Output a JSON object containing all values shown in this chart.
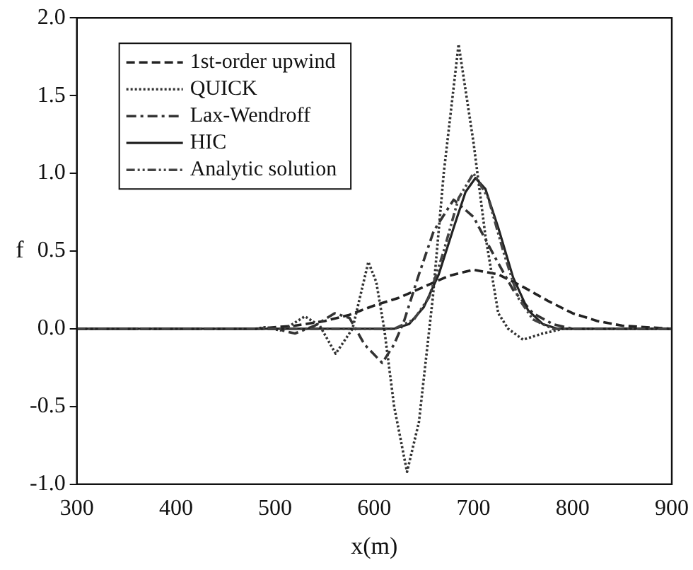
{
  "chart_data": {
    "type": "line",
    "xlabel": "x(m)",
    "ylabel": "f",
    "xlim": [
      300,
      900
    ],
    "xticks": [
      300,
      400,
      500,
      600,
      700,
      800,
      900
    ],
    "ylim": [
      -1.0,
      2.0
    ],
    "yticks": [
      {
        "value": -1,
        "label": "-1.0"
      },
      {
        "value": -0.5,
        "label": "-0.5"
      },
      {
        "value": 0,
        "label": "0.0"
      },
      {
        "value": 0.5,
        "label": "0.5"
      },
      {
        "value": 1,
        "label": "1.0"
      },
      {
        "value": 1.5,
        "label": "1.5"
      },
      {
        "value": 2,
        "label": "2.0"
      }
    ],
    "grid": false,
    "legend": "top left",
    "marker": "none",
    "series": [
      {
        "name": "1st-order upwind",
        "color": "#222222",
        "line_style": "dashed",
        "x": [
          300,
          480,
          520,
          550,
          575,
          600,
          625,
          650,
          675,
          700,
          725,
          750,
          775,
          800,
          825,
          850,
          875,
          900
        ],
        "values": [
          0,
          0,
          0.02,
          0.05,
          0.09,
          0.15,
          0.2,
          0.27,
          0.34,
          0.38,
          0.35,
          0.27,
          0.18,
          0.1,
          0.05,
          0.02,
          0.01,
          0
        ]
      },
      {
        "name": "QUICK",
        "color": "#333333",
        "line_style": "dotted",
        "x": [
          300,
          480,
          490,
          505,
          515,
          530,
          545,
          561,
          578,
          594,
          602,
          610,
          620,
          633,
          645,
          659,
          670,
          685,
          700,
          712,
          725,
          735,
          750,
          770,
          790,
          900
        ],
        "values": [
          0,
          0,
          0.01,
          -0.01,
          0.02,
          0.08,
          0.02,
          -0.16,
          0,
          0.43,
          0.3,
          0,
          -0.5,
          -0.92,
          -0.6,
          0.2,
          1.0,
          1.83,
          1.2,
          0.6,
          0.1,
          0,
          -0.07,
          -0.03,
          0,
          0
        ]
      },
      {
        "name": "Lax-Wendroff",
        "color": "#333333",
        "line_style": "dashdot",
        "x": [
          300,
          500,
          520,
          540,
          560,
          575,
          590,
          608,
          620,
          630,
          645,
          660,
          680,
          700,
          720,
          740,
          760,
          780,
          800,
          900
        ],
        "values": [
          0,
          0,
          -0.03,
          0.02,
          0.1,
          0.07,
          -0.1,
          -0.22,
          -0.1,
          0.05,
          0.35,
          0.63,
          0.83,
          0.72,
          0.48,
          0.25,
          0.1,
          0.03,
          0,
          0
        ]
      },
      {
        "name": "HIC",
        "color": "#222222",
        "line_style": "solid",
        "x": [
          300,
          620,
          635,
          650,
          665,
          680,
          692,
          702,
          712,
          725,
          740,
          755,
          770,
          785,
          900
        ],
        "values": [
          0,
          0,
          0.03,
          0.14,
          0.35,
          0.65,
          0.88,
          0.97,
          0.9,
          0.65,
          0.33,
          0.12,
          0.03,
          0,
          0
        ]
      },
      {
        "name": "Analytic solution",
        "color": "#444444",
        "line_style": "dashdotdot",
        "x": [
          300,
          620,
          640,
          655,
          670,
          685,
          700,
          715,
          730,
          745,
          760,
          780,
          900
        ],
        "values": [
          0,
          0,
          0.06,
          0.2,
          0.5,
          0.84,
          1.0,
          0.84,
          0.5,
          0.2,
          0.06,
          0,
          0
        ]
      }
    ]
  }
}
